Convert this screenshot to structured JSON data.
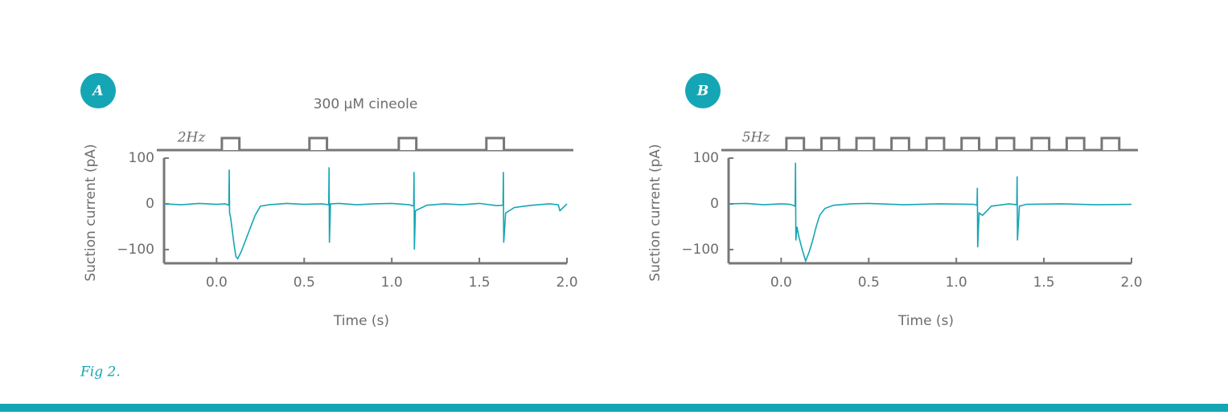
{
  "chart_data": [
    {
      "type": "line",
      "panel_label": "A",
      "title": "300 µM cineole",
      "stimulus": {
        "label": "2Hz",
        "pulse_starts": [
          0.03,
          0.53,
          1.04,
          1.54
        ],
        "pulse_width": 0.1
      },
      "x_label": "Time (s)",
      "y_label": "Suction current (pA)",
      "color": "#14a6b4",
      "x": [
        -0.3,
        -0.2,
        -0.1,
        0,
        0.05,
        0.07,
        0.072,
        0.074,
        0.08,
        0.09,
        0.1,
        0.11,
        0.12,
        0.14,
        0.16,
        0.18,
        0.2,
        0.22,
        0.25,
        0.3,
        0.4,
        0.5,
        0.6,
        0.64,
        0.642,
        0.644,
        0.65,
        0.7,
        0.8,
        0.9,
        1.0,
        1.1,
        1.125,
        1.127,
        1.129,
        1.135,
        1.2,
        1.3,
        1.4,
        1.5,
        1.6,
        1.635,
        1.637,
        1.639,
        1.65,
        1.7,
        1.8,
        1.9,
        1.95,
        1.96,
        2.0
      ],
      "values": [
        0,
        -2,
        1,
        -1,
        0,
        -3,
        75,
        -20,
        -30,
        -60,
        -90,
        -115,
        -120,
        -105,
        -85,
        -65,
        -45,
        -25,
        -5,
        -2,
        1,
        -1,
        0,
        -2,
        80,
        -85,
        0,
        1,
        -2,
        0,
        1,
        -2,
        -5,
        70,
        -100,
        -15,
        -3,
        0,
        -2,
        1,
        -4,
        -3,
        70,
        -85,
        -20,
        -8,
        -3,
        0,
        -2,
        -15,
        0
      ],
      "xlim": [
        -0.3,
        2.0
      ],
      "xticks": [
        {
          "value": 0,
          "label": "0.0"
        },
        0.5,
        {
          "value": 1,
          "label": "1.0"
        },
        1.5,
        {
          "value": 2,
          "label": "2.0"
        }
      ],
      "ylim": [
        -130,
        100
      ],
      "yticks": [
        100,
        0,
        {
          "value": -100,
          "label": "−100"
        }
      ]
    },
    {
      "type": "line",
      "panel_label": "B",
      "stimulus": {
        "label": "5Hz",
        "pulse_starts": [
          0.03,
          0.23,
          0.43,
          0.63,
          0.83,
          1.03,
          1.23,
          1.43,
          1.63,
          1.83
        ],
        "pulse_width": 0.1
      },
      "x_label": "Time (s)",
      "y_label": "Suction current (pA)",
      "color": "#14a6b4",
      "x": [
        -0.3,
        -0.2,
        -0.1,
        0,
        0.05,
        0.08,
        0.082,
        0.084,
        0.09,
        0.1,
        0.12,
        0.14,
        0.16,
        0.18,
        0.2,
        0.22,
        0.25,
        0.3,
        0.4,
        0.5,
        0.7,
        0.9,
        1.1,
        1.118,
        1.12,
        1.122,
        1.13,
        1.15,
        1.2,
        1.3,
        1.345,
        1.347,
        1.349,
        1.36,
        1.4,
        1.6,
        1.8,
        2.0
      ],
      "values": [
        0,
        1,
        -2,
        0,
        -1,
        -5,
        90,
        -80,
        -50,
        -70,
        -100,
        -125,
        -105,
        -80,
        -50,
        -25,
        -10,
        -3,
        0,
        1,
        -2,
        0,
        -1,
        -3,
        35,
        -95,
        -20,
        -25,
        -5,
        0,
        -2,
        60,
        -80,
        -5,
        -1,
        0,
        -2,
        -1
      ],
      "xlim": [
        -0.3,
        2.0
      ],
      "xticks": [
        {
          "value": 0,
          "label": "0.0"
        },
        0.5,
        {
          "value": 1,
          "label": "1.0"
        },
        1.5,
        {
          "value": 2,
          "label": "2.0"
        }
      ],
      "ylim": [
        -130,
        100
      ],
      "yticks": [
        100,
        0,
        {
          "value": -100,
          "label": "−100"
        }
      ]
    }
  ],
  "caption": "Fig 2."
}
